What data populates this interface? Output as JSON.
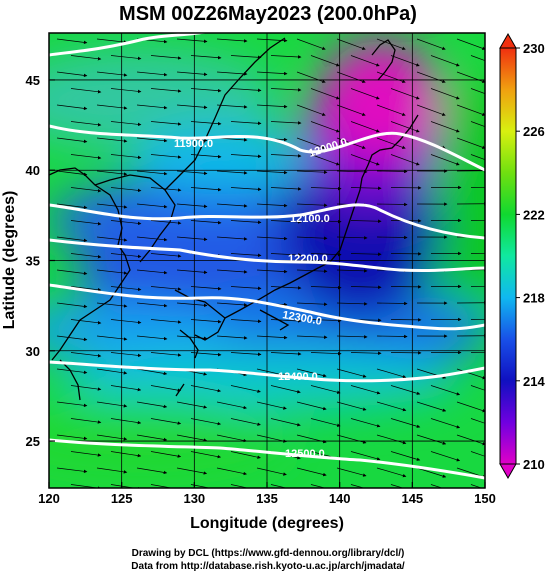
{
  "title": "MSM 00Z26May2023 (200.0hPa)",
  "xlabel": "Longitude (degrees)",
  "ylabel": "Latitude  (degrees)",
  "credits": [
    "Drawing by DCL (https://www.gfd-dennou.org/library/dcl/)",
    "Data from http://database.rish.kyoto-u.ac.jp/arch/jmadata/"
  ],
  "map": {
    "lon_range": [
      120,
      150
    ],
    "lat_range": [
      22.4,
      47.6
    ],
    "lon_ticks": [
      "120",
      "125",
      "130",
      "135",
      "140",
      "145",
      "150"
    ],
    "lat_ticks": [
      "25",
      "30",
      "35",
      "40",
      "45"
    ],
    "lon_tick_values": [
      120,
      125,
      130,
      135,
      140,
      145,
      150
    ],
    "lat_tick_values": [
      25,
      30,
      35,
      40,
      45
    ]
  },
  "colorbar": {
    "ticks": [
      "210",
      "214",
      "218",
      "222",
      "226",
      "230"
    ],
    "tick_values": [
      210,
      214,
      218,
      222,
      226,
      230
    ],
    "range": [
      210,
      230
    ],
    "colors": [
      "#e000c8",
      "#7000e0",
      "#1010c0",
      "#1850e8",
      "#10b8f0",
      "#10e8a0",
      "#10d830",
      "#70e010",
      "#d8f010",
      "#f0a010",
      "#f03010"
    ]
  },
  "contours": [
    {
      "label": "11900.0"
    },
    {
      "label": "12000.0"
    },
    {
      "label": "12100.0"
    },
    {
      "label": "12200.0"
    },
    {
      "label": "12300.0"
    },
    {
      "label": "12400.0"
    },
    {
      "label": "12500.0"
    }
  ]
}
